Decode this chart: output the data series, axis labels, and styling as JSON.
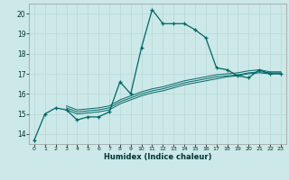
{
  "xlabel": "Humidex (Indice chaleur)",
  "background_color": "#cce8e8",
  "grid_color": "#bbdada",
  "line_color": "#006666",
  "xlim": [
    -0.5,
    23.5
  ],
  "ylim": [
    13.5,
    20.5
  ],
  "yticks": [
    14,
    15,
    16,
    17,
    18,
    19,
    20
  ],
  "xticks": [
    0,
    1,
    2,
    3,
    4,
    5,
    6,
    7,
    8,
    9,
    10,
    11,
    12,
    13,
    14,
    15,
    16,
    17,
    18,
    19,
    20,
    21,
    22,
    23
  ],
  "series1_x": [
    0,
    1,
    2,
    3,
    4,
    5,
    6,
    7,
    8,
    9,
    10,
    11,
    12,
    13,
    14,
    15,
    16,
    17,
    18,
    19,
    20,
    21,
    22,
    23
  ],
  "series1_y": [
    13.7,
    15.0,
    15.3,
    15.2,
    14.7,
    14.85,
    14.85,
    15.1,
    16.6,
    16.0,
    18.3,
    20.2,
    19.5,
    19.5,
    19.5,
    19.2,
    18.8,
    17.3,
    17.2,
    16.9,
    16.8,
    17.2,
    17.0,
    17.0
  ],
  "series2_x": [
    3,
    4,
    5,
    6,
    7,
    8,
    9,
    10,
    11,
    12,
    13,
    14,
    15,
    16,
    17,
    18,
    19,
    20,
    21,
    22,
    23
  ],
  "series2_y": [
    15.2,
    15.0,
    15.05,
    15.1,
    15.2,
    15.5,
    15.7,
    15.9,
    16.05,
    16.15,
    16.3,
    16.45,
    16.55,
    16.65,
    16.75,
    16.85,
    16.9,
    17.0,
    17.05,
    17.0,
    17.0
  ],
  "series3_x": [
    3,
    4,
    5,
    6,
    7,
    8,
    9,
    10,
    11,
    12,
    13,
    14,
    15,
    16,
    17,
    18,
    19,
    20,
    21,
    22,
    23
  ],
  "series3_y": [
    15.3,
    15.1,
    15.15,
    15.2,
    15.3,
    15.6,
    15.8,
    16.0,
    16.15,
    16.25,
    16.4,
    16.55,
    16.65,
    16.75,
    16.85,
    16.9,
    16.95,
    17.05,
    17.1,
    17.05,
    17.05
  ],
  "series4_x": [
    3,
    4,
    5,
    6,
    7,
    8,
    9,
    10,
    11,
    12,
    13,
    14,
    15,
    16,
    17,
    18,
    19,
    20,
    21,
    22,
    23
  ],
  "series4_y": [
    15.4,
    15.2,
    15.25,
    15.3,
    15.4,
    15.7,
    15.9,
    16.1,
    16.25,
    16.35,
    16.5,
    16.65,
    16.75,
    16.85,
    16.95,
    17.0,
    17.05,
    17.15,
    17.2,
    17.1,
    17.1
  ]
}
